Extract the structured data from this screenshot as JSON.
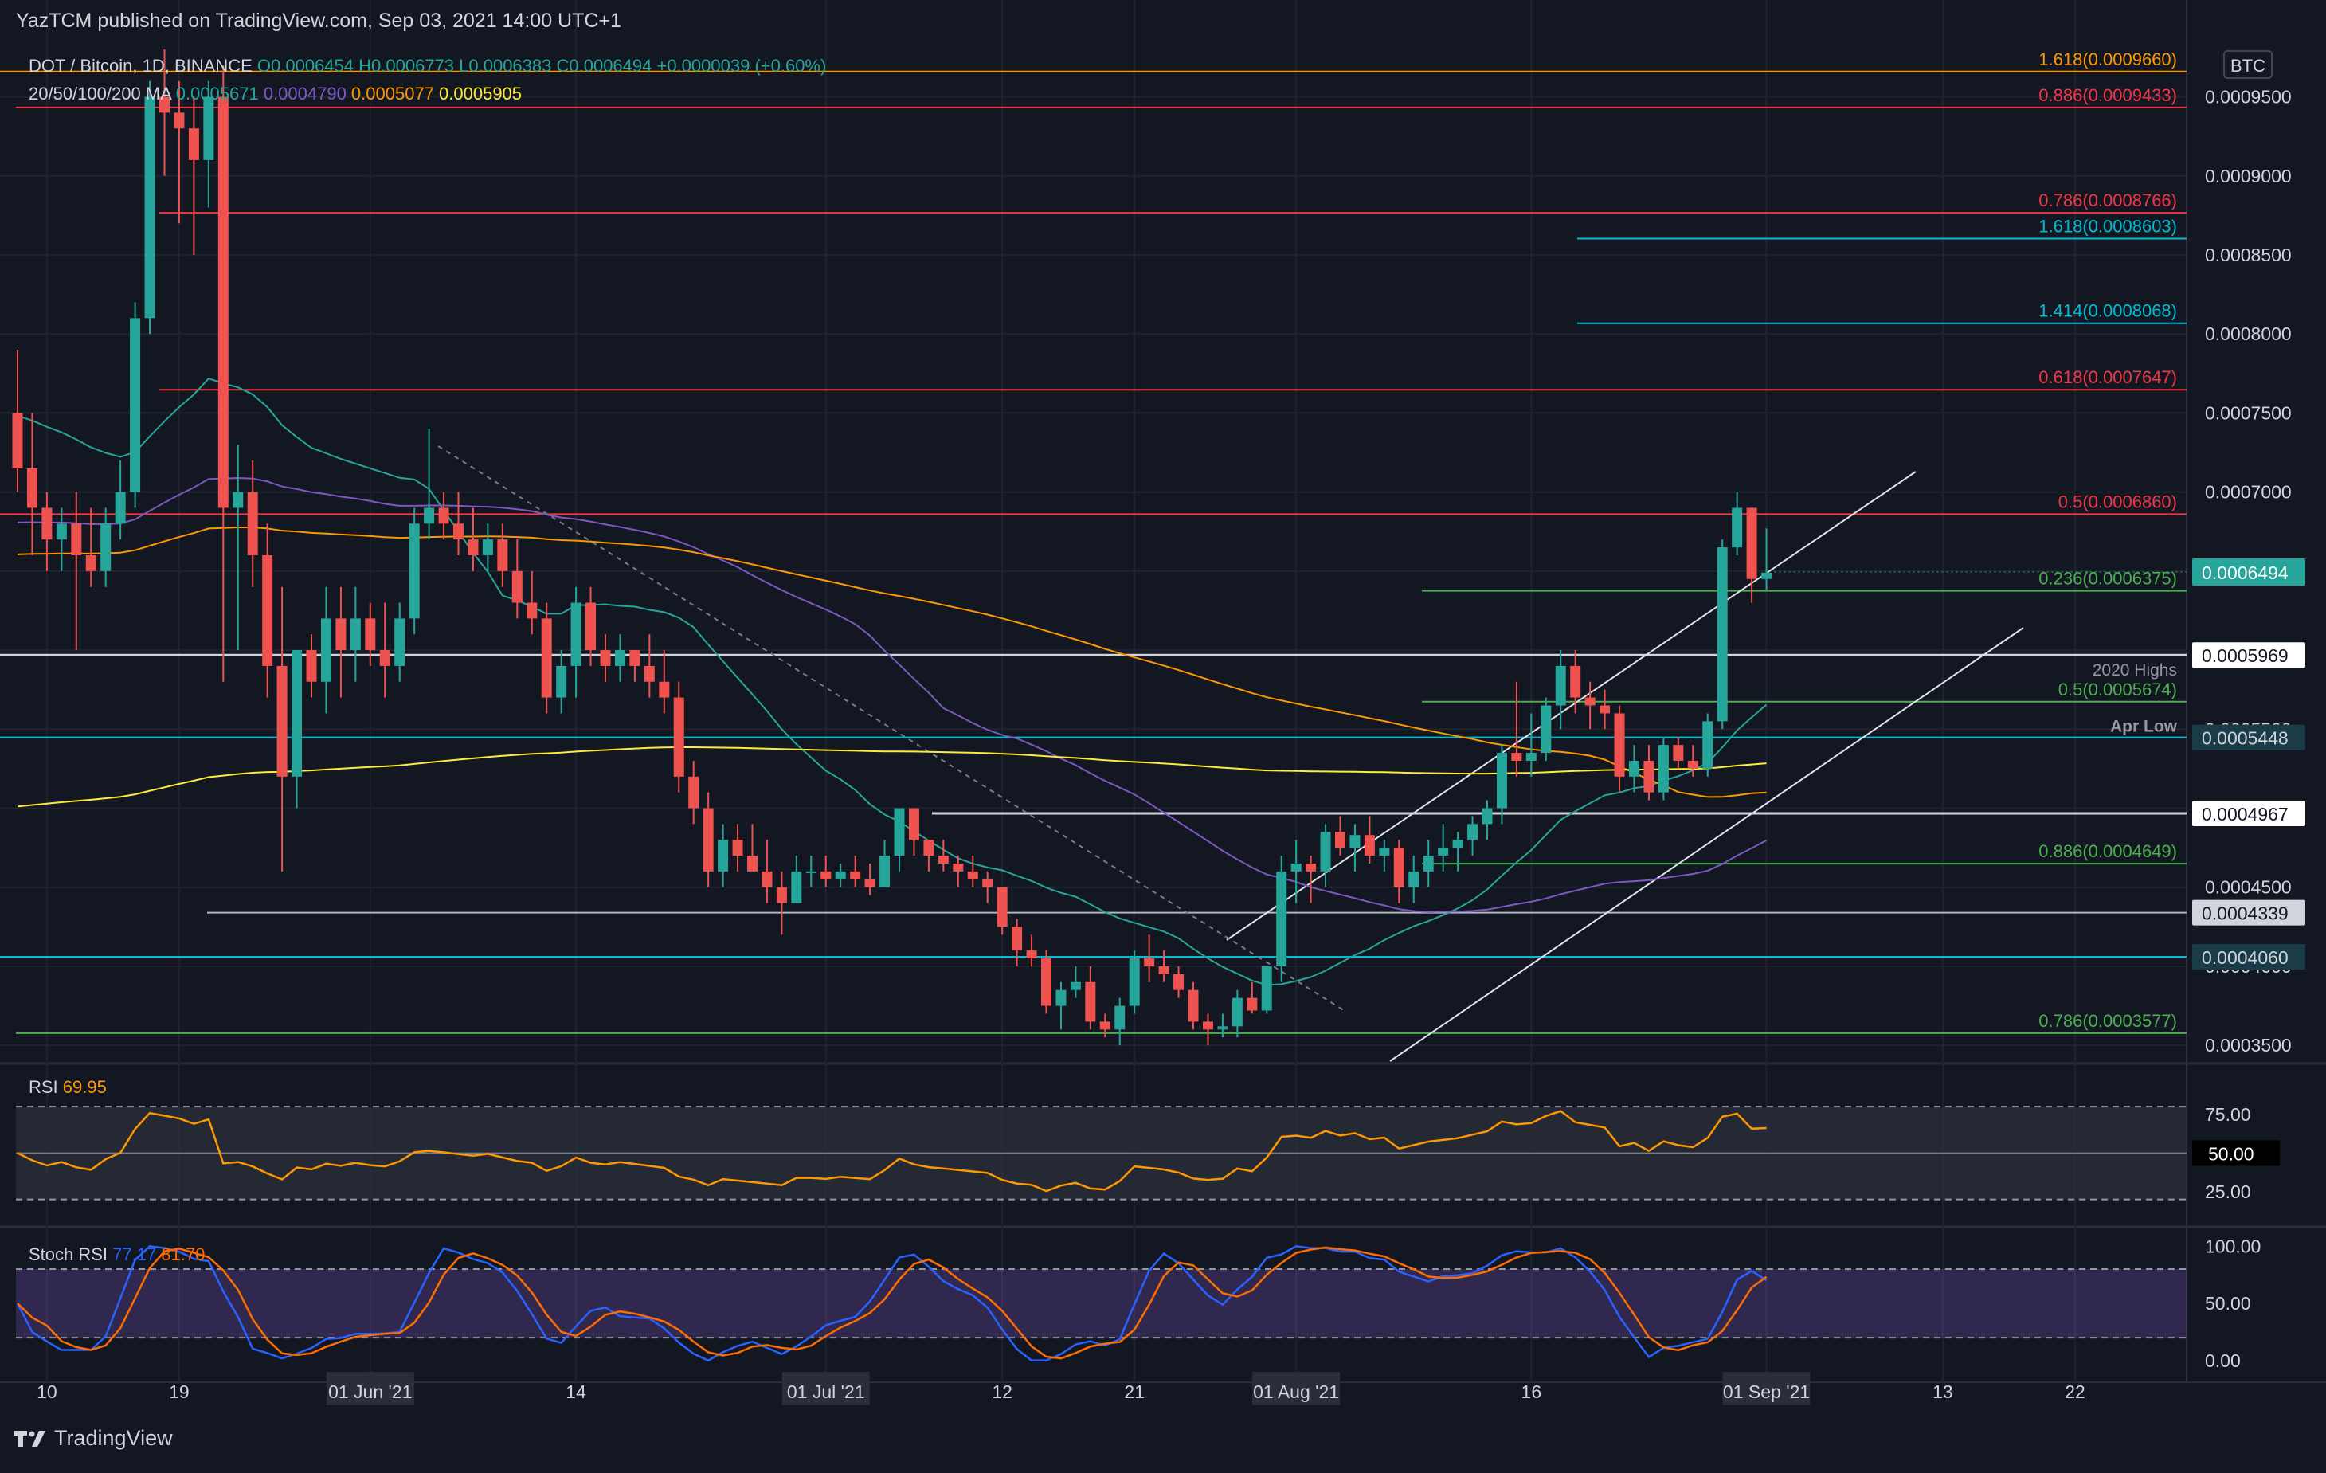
{
  "header": {
    "publisher_line": "YazTCM published on TradingView.com, Sep 03, 2021 14:00 UTC+1"
  },
  "legend": {
    "symbol_line": "DOT / Bitcoin, 1D, BINANCE",
    "ohlc": {
      "o": "O0.0006454",
      "h": "H0.0006773",
      "l": "L0.0006383",
      "c": "C0.0006494",
      "chg": "+0.0000039 (+0.60%)"
    },
    "ma_label": "20/50/100/200 MA",
    "ma_values": [
      "0.0005671",
      "0.0004790",
      "0.0005077",
      "0.0005905"
    ]
  },
  "currency_badge": "BTC",
  "colors": {
    "up": "#26a69a",
    "down": "#ef5350",
    "bg": "#131722",
    "grid": "#2a2e39",
    "ma20": "#26a69a",
    "ma50": "#7e57c2",
    "ma100": "#ff9800",
    "ma200": "#ffeb3b",
    "rsi": "#ff9800",
    "stoch_k": "#2962ff",
    "stoch_d": "#ff6d00",
    "fib_red": "#f23645",
    "fib_blue": "#00bcd4",
    "fib_green": "#4caf50",
    "orange": "#ff9800"
  },
  "footer": {
    "brand": "TradingView"
  },
  "chart_data": [
    {
      "type": "candlestick",
      "title": "DOT / Bitcoin, 1D, BINANCE",
      "ylim": [
        0.00034,
        0.00098
      ],
      "y_ticks": [
        "0.0009500",
        "0.0009000",
        "0.0008500",
        "0.0008000",
        "0.0007500",
        "0.0007000",
        "0.0006500",
        "0.0006000",
        "0.0005500",
        "0.0005000",
        "0.0004500",
        "0.0004000",
        "0.0003500"
      ],
      "x_ticks": [
        "10",
        "19",
        "01 Jun '21",
        "14",
        "01 Jul '21",
        "12",
        "21",
        "01 Aug '21",
        "16",
        "01 Sep '21",
        "13",
        "22"
      ],
      "price_badge": "0.0006494",
      "candles": [
        [
          0.00075,
          0.00079,
          0.0007,
          0.000715
        ],
        [
          0.000715,
          0.00075,
          0.00066,
          0.00069
        ],
        [
          0.00069,
          0.0007,
          0.00065,
          0.00067
        ],
        [
          0.00067,
          0.00069,
          0.00065,
          0.00068
        ],
        [
          0.00068,
          0.0007,
          0.0006,
          0.00066
        ],
        [
          0.00066,
          0.00069,
          0.00064,
          0.00065
        ],
        [
          0.00065,
          0.00069,
          0.00064,
          0.00068
        ],
        [
          0.00068,
          0.00072,
          0.00067,
          0.0007
        ],
        [
          0.0007,
          0.00082,
          0.00069,
          0.00081
        ],
        [
          0.00081,
          0.00096,
          0.0008,
          0.00095
        ],
        [
          0.00095,
          0.00098,
          0.0009,
          0.00094
        ],
        [
          0.00094,
          0.00096,
          0.00087,
          0.00093
        ],
        [
          0.00093,
          0.00095,
          0.00085,
          0.00091
        ],
        [
          0.00091,
          0.00096,
          0.00088,
          0.00095
        ],
        [
          0.00095,
          0.00097,
          0.00058,
          0.00069
        ],
        [
          0.00069,
          0.00073,
          0.0006,
          0.0007
        ],
        [
          0.0007,
          0.00072,
          0.00064,
          0.00066
        ],
        [
          0.00066,
          0.00068,
          0.00057,
          0.00059
        ],
        [
          0.00059,
          0.00064,
          0.00046,
          0.00052
        ],
        [
          0.00052,
          0.0006,
          0.0005,
          0.0006
        ],
        [
          0.0006,
          0.00061,
          0.00057,
          0.00058
        ],
        [
          0.00058,
          0.00064,
          0.00056,
          0.00062
        ],
        [
          0.00062,
          0.00064,
          0.00057,
          0.0006
        ],
        [
          0.0006,
          0.00064,
          0.00058,
          0.00062
        ],
        [
          0.00062,
          0.00063,
          0.00059,
          0.0006
        ],
        [
          0.0006,
          0.00063,
          0.00057,
          0.00059
        ],
        [
          0.00059,
          0.00063,
          0.00058,
          0.00062
        ],
        [
          0.00062,
          0.00069,
          0.00061,
          0.00068
        ],
        [
          0.00068,
          0.00074,
          0.00067,
          0.00069
        ],
        [
          0.00069,
          0.0007,
          0.00067,
          0.00068
        ],
        [
          0.00068,
          0.0007,
          0.00066,
          0.00067
        ],
        [
          0.00067,
          0.00069,
          0.00065,
          0.00066
        ],
        [
          0.00066,
          0.00068,
          0.00065,
          0.00067
        ],
        [
          0.00067,
          0.00068,
          0.00064,
          0.00065
        ],
        [
          0.00065,
          0.00067,
          0.00062,
          0.00063
        ],
        [
          0.00063,
          0.00065,
          0.00061,
          0.00062
        ],
        [
          0.00062,
          0.00063,
          0.00056,
          0.00057
        ],
        [
          0.00057,
          0.0006,
          0.00056,
          0.00059
        ],
        [
          0.00059,
          0.00064,
          0.00057,
          0.00063
        ],
        [
          0.00063,
          0.00064,
          0.00059,
          0.0006
        ],
        [
          0.0006,
          0.00061,
          0.00058,
          0.00059
        ],
        [
          0.00059,
          0.00061,
          0.00058,
          0.0006
        ],
        [
          0.0006,
          0.0006,
          0.00058,
          0.00059
        ],
        [
          0.00059,
          0.00061,
          0.00057,
          0.00058
        ],
        [
          0.00058,
          0.0006,
          0.00056,
          0.00057
        ],
        [
          0.00057,
          0.00058,
          0.00051,
          0.00052
        ],
        [
          0.00052,
          0.00053,
          0.00049,
          0.0005
        ],
        [
          0.0005,
          0.00051,
          0.00045,
          0.00046
        ],
        [
          0.00046,
          0.00049,
          0.00045,
          0.00048
        ],
        [
          0.00048,
          0.00049,
          0.00046,
          0.00047
        ],
        [
          0.00047,
          0.00049,
          0.00046,
          0.00046
        ],
        [
          0.00046,
          0.00048,
          0.00044,
          0.00045
        ],
        [
          0.00045,
          0.00046,
          0.00042,
          0.00044
        ],
        [
          0.00044,
          0.00047,
          0.00044,
          0.00046
        ],
        [
          0.00046,
          0.00047,
          0.00045,
          0.00046
        ],
        [
          0.00046,
          0.00047,
          0.00045,
          0.000455
        ],
        [
          0.000455,
          0.000465,
          0.00045,
          0.00046
        ],
        [
          0.00046,
          0.00047,
          0.00045,
          0.000455
        ],
        [
          0.000455,
          0.000465,
          0.000445,
          0.00045
        ],
        [
          0.00045,
          0.00048,
          0.00045,
          0.00047
        ],
        [
          0.00047,
          0.0005,
          0.00046,
          0.0005
        ],
        [
          0.0005,
          0.0005,
          0.00047,
          0.00048
        ],
        [
          0.00048,
          0.00048,
          0.00046,
          0.00047
        ],
        [
          0.00047,
          0.00048,
          0.00046,
          0.000465
        ],
        [
          0.000465,
          0.00047,
          0.00045,
          0.00046
        ],
        [
          0.00046,
          0.00047,
          0.00045,
          0.000455
        ],
        [
          0.000455,
          0.00046,
          0.00044,
          0.00045
        ],
        [
          0.00045,
          0.00045,
          0.00042,
          0.000425
        ],
        [
          0.000425,
          0.00043,
          0.0004,
          0.00041
        ],
        [
          0.00041,
          0.00042,
          0.0004,
          0.000405
        ],
        [
          0.000405,
          0.00041,
          0.00037,
          0.000375
        ],
        [
          0.000375,
          0.00039,
          0.00036,
          0.000385
        ],
        [
          0.000385,
          0.0004,
          0.00038,
          0.00039
        ],
        [
          0.00039,
          0.0004,
          0.00036,
          0.000365
        ],
        [
          0.000365,
          0.00037,
          0.000355,
          0.00036
        ],
        [
          0.00036,
          0.00038,
          0.00035,
          0.000375
        ],
        [
          0.000375,
          0.00041,
          0.00037,
          0.000405
        ],
        [
          0.000405,
          0.00042,
          0.00039,
          0.0004
        ],
        [
          0.0004,
          0.00041,
          0.00039,
          0.000395
        ],
        [
          0.000395,
          0.0004,
          0.00038,
          0.000385
        ],
        [
          0.000385,
          0.00039,
          0.00036,
          0.000365
        ],
        [
          0.000365,
          0.00037,
          0.00035,
          0.00036
        ],
        [
          0.00036,
          0.00037,
          0.000355,
          0.000362
        ],
        [
          0.000362,
          0.000385,
          0.000355,
          0.00038
        ],
        [
          0.00038,
          0.00039,
          0.00037,
          0.000372
        ],
        [
          0.000372,
          0.0004,
          0.00037,
          0.0004
        ],
        [
          0.0004,
          0.00047,
          0.00039,
          0.00046
        ],
        [
          0.00046,
          0.00048,
          0.00044,
          0.000465
        ],
        [
          0.000465,
          0.00047,
          0.00044,
          0.00046
        ],
        [
          0.00046,
          0.00049,
          0.00045,
          0.000485
        ],
        [
          0.000485,
          0.000495,
          0.00047,
          0.000475
        ],
        [
          0.000475,
          0.00049,
          0.00046,
          0.000483
        ],
        [
          0.000483,
          0.000495,
          0.000465,
          0.00047
        ],
        [
          0.00047,
          0.00048,
          0.00046,
          0.000475
        ],
        [
          0.000475,
          0.00048,
          0.00044,
          0.00045
        ],
        [
          0.00045,
          0.00047,
          0.00044,
          0.00046
        ],
        [
          0.00046,
          0.00048,
          0.00045,
          0.00047
        ],
        [
          0.00047,
          0.00049,
          0.00046,
          0.000475
        ],
        [
          0.000475,
          0.000485,
          0.00046,
          0.00048
        ],
        [
          0.00048,
          0.000495,
          0.00047,
          0.00049
        ],
        [
          0.00049,
          0.000505,
          0.00048,
          0.0005
        ],
        [
          0.0005,
          0.00054,
          0.00049,
          0.000535
        ],
        [
          0.000535,
          0.00058,
          0.00052,
          0.00053
        ],
        [
          0.00053,
          0.00056,
          0.00052,
          0.000535
        ],
        [
          0.000535,
          0.00057,
          0.00053,
          0.000565
        ],
        [
          0.000565,
          0.0006,
          0.00055,
          0.00059
        ],
        [
          0.00059,
          0.0006,
          0.00056,
          0.00057
        ],
        [
          0.00057,
          0.00058,
          0.00055,
          0.000565
        ],
        [
          0.000565,
          0.000575,
          0.00055,
          0.00056
        ],
        [
          0.00056,
          0.000565,
          0.00051,
          0.00052
        ],
        [
          0.00052,
          0.00054,
          0.00051,
          0.00053
        ],
        [
          0.00053,
          0.00054,
          0.000505,
          0.00051
        ],
        [
          0.00051,
          0.000545,
          0.000505,
          0.00054
        ],
        [
          0.00054,
          0.000545,
          0.000525,
          0.00053
        ],
        [
          0.00053,
          0.00054,
          0.00052,
          0.000525
        ],
        [
          0.000525,
          0.00056,
          0.00052,
          0.000555
        ],
        [
          0.000555,
          0.00067,
          0.00055,
          0.000665
        ],
        [
          0.000665,
          0.0007,
          0.00066,
          0.00069
        ],
        [
          0.00069,
          0.00069,
          0.00063,
          0.000645
        ],
        [
          0.000645,
          0.000677,
          0.000638,
          0.000649
        ]
      ],
      "moving_averages": [
        {
          "name": "20 MA",
          "period": 20
        },
        {
          "name": "50 MA",
          "period": 50
        },
        {
          "name": "100 MA",
          "period": 100
        },
        {
          "name": "200 MA",
          "period": 200
        }
      ],
      "levels": [
        {
          "label": "1.618(0.0009660)",
          "price": 0.000966,
          "color": "orange"
        },
        {
          "label": "0.886(0.0009433)",
          "price": 0.0009433,
          "color": "red"
        },
        {
          "label": "0.786(0.0008766)",
          "price": 0.0008766,
          "color": "red"
        },
        {
          "label": "1.618(0.0008603)",
          "price": 0.0008603,
          "color": "blue"
        },
        {
          "label": "1.414(0.0008068)",
          "price": 0.0008068,
          "color": "blue"
        },
        {
          "label": "0.618(0.0007647)",
          "price": 0.0007647,
          "color": "red"
        },
        {
          "label": "0.5(0.0006860)",
          "price": 0.000686,
          "color": "red"
        },
        {
          "label": "0.236(0.0006375)",
          "price": 0.0006375,
          "color": "green"
        },
        {
          "label": "0.5(0.0005674)",
          "price": 0.0005674,
          "color": "green"
        },
        {
          "label": "0.886(0.0004649)",
          "price": 0.0004649,
          "color": "green"
        },
        {
          "label": "0.786(0.0003577)",
          "price": 0.0003577,
          "color": "green"
        }
      ],
      "hlines": [
        {
          "badge": "0.0005969",
          "price": 0.0005969,
          "color": "white"
        },
        {
          "badge": "0.0005448",
          "price": 0.0005448,
          "color": "blue",
          "note": "Apr Low"
        },
        {
          "badge": "0.0004967",
          "price": 0.0004967,
          "color": "white"
        },
        {
          "badge": "0.0004339",
          "price": 0.0004339,
          "color": "gray"
        },
        {
          "badge": "0.0004060",
          "price": 0.000406,
          "color": "blue"
        }
      ],
      "annotations": [
        "2020 Highs",
        "Apr Low"
      ]
    },
    {
      "type": "line",
      "title": "RSI",
      "legend_label": "RSI",
      "current_value": "69.95",
      "ylim": [
        10,
        95
      ],
      "y_ticks": [
        "75.00",
        "50.00",
        "25.00"
      ],
      "bands": [
        80,
        20
      ],
      "midline": 50
    },
    {
      "type": "line",
      "title": "Stoch RSI",
      "legend_label": "Stoch RSI",
      "k_value": "77.17",
      "d_value": "81.70",
      "ylim": [
        -5,
        110
      ],
      "y_ticks": [
        "100.00",
        "50.00",
        "0.00"
      ],
      "bands": [
        80,
        20
      ]
    }
  ]
}
